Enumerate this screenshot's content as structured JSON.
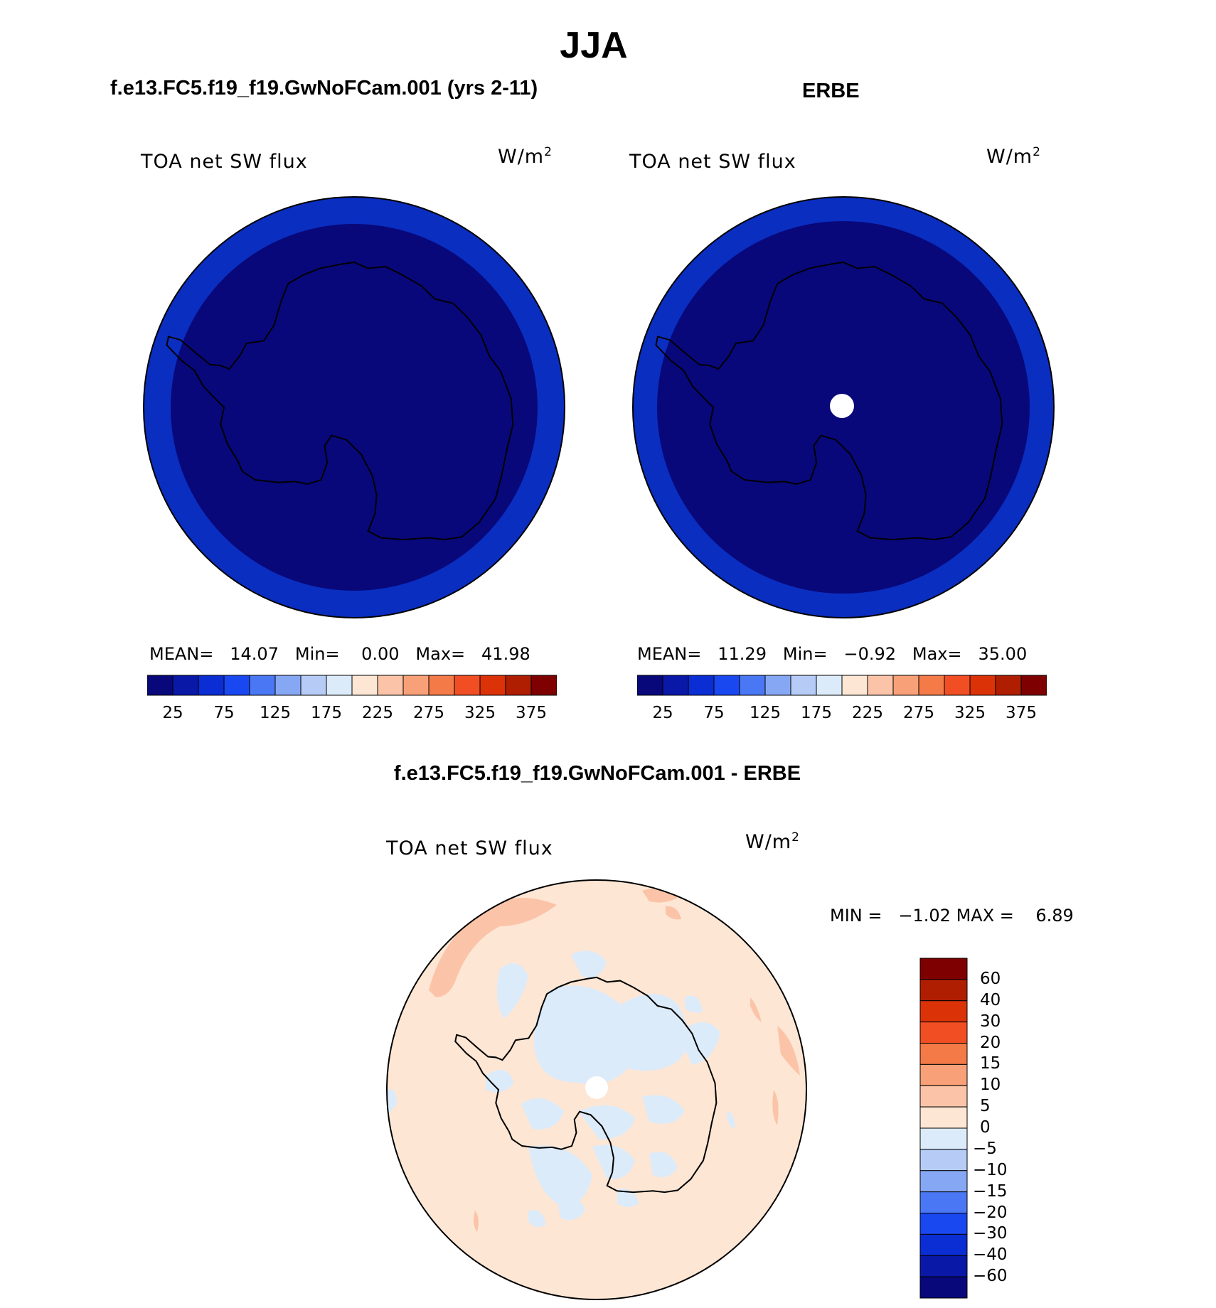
{
  "page": {
    "season": "JJA",
    "diff_title": "f.e13.FC5.f19_f19.GwNoFCam.001 - ERBE"
  },
  "panels": [
    {
      "case": "f.e13.FC5.f19_f19.GwNoFCam.001 (yrs 2-11)",
      "variable": "TOA net SW flux",
      "units_base": "W/m",
      "units_exp": "2",
      "stats": {
        "mean_label": "MEAN=",
        "mean": "14.07",
        "min_label": "Min=",
        "min": "0.00",
        "max_label": "Max=",
        "max": "41.98"
      }
    },
    {
      "case": "ERBE",
      "variable": "TOA net SW flux",
      "units_base": "W/m",
      "units_exp": "2",
      "stats": {
        "mean_label": "MEAN=",
        "mean": "11.29",
        "min_label": "Min=",
        "min": "−0.92",
        "max_label": "Max=",
        "max": "35.00"
      }
    }
  ],
  "diff_panel": {
    "variable": "TOA net SW flux",
    "units_base": "W/m",
    "units_exp": "2",
    "stats": {
      "min_label": "MIN =",
      "min": "−1.02",
      "max_label": "MAX =",
      "max": "6.89"
    }
  },
  "colorbar_main": {
    "colors": [
      "#08087a",
      "#0a18a8",
      "#0a2ed4",
      "#1a48f0",
      "#4a78f4",
      "#86a8f4",
      "#b6ccf6",
      "#dcebfa",
      "#fde6d4",
      "#fbc4a8",
      "#f8a078",
      "#f47a48",
      "#f24e24",
      "#dc3208",
      "#b01e02",
      "#7e0000"
    ],
    "tick_labels": [
      "25",
      "75",
      "125",
      "175",
      "225",
      "275",
      "325",
      "375"
    ]
  },
  "colorbar_diff": {
    "colors_top_to_bottom": [
      "#7e0000",
      "#b01e02",
      "#dc3208",
      "#f24e24",
      "#f47a48",
      "#f8a078",
      "#fbc4a8",
      "#fde6d4",
      "#dcebfa",
      "#b6ccf6",
      "#86a8f4",
      "#4a78f4",
      "#1a48f0",
      "#0a2ed4",
      "#0a18a8",
      "#08087a"
    ],
    "tick_labels": [
      "60",
      "40",
      "30",
      "20",
      "15",
      "10",
      "5",
      "0",
      "−5",
      "−10",
      "−15",
      "−20",
      "−30",
      "−40",
      "−60"
    ]
  },
  "map_colors": {
    "model_outer": "#0a2ec0",
    "model_inner": "#08087a",
    "diff_background": "#fde6d4",
    "diff_positive": "#fbc4a8",
    "diff_negative": "#dcebfa",
    "missing": "#ffffff"
  }
}
